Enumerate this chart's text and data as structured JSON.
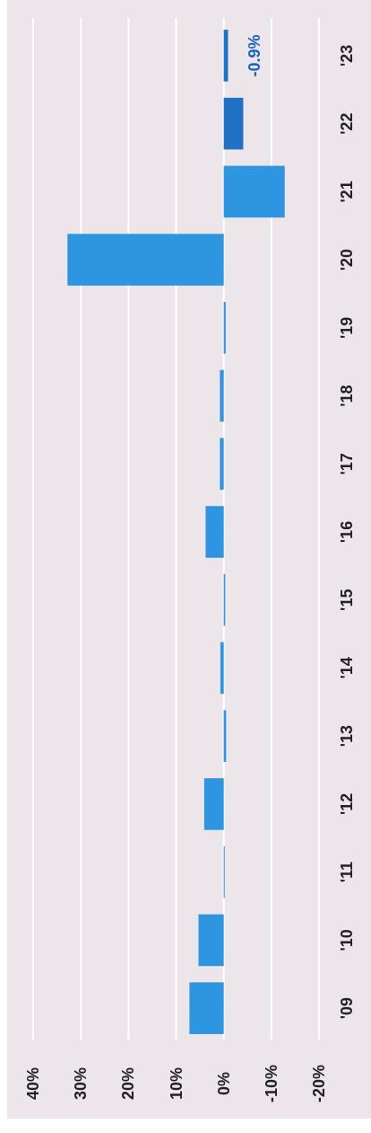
{
  "chart_data": {
    "type": "bar",
    "orientation": "horizontal",
    "categories": [
      "'23",
      "'22",
      "'21",
      "'20",
      "'19",
      "'18",
      "'17",
      "'16",
      "'15",
      "'14",
      "'13",
      "'12",
      "'11",
      "'10",
      "'09"
    ],
    "values": [
      -0.9,
      -4.1,
      -12.8,
      32.8,
      -0.4,
      0.8,
      0.8,
      3.8,
      -0.3,
      0.7,
      -0.5,
      4.1,
      -0.2,
      5.3,
      7.2
    ],
    "colors": [
      "#1f72c6",
      "#1f72c6",
      "#2e95e0",
      "#2e95e0",
      "#2e95e0",
      "#2e95e0",
      "#2e95e0",
      "#2e95e0",
      "#2e95e0",
      "#2e95e0",
      "#2e95e0",
      "#2e95e0",
      "#2e95e0",
      "#2e95e0",
      "#2e95e0"
    ],
    "value_labels": [
      "-0.9%",
      null,
      null,
      null,
      null,
      null,
      null,
      null,
      null,
      null,
      null,
      null,
      null,
      null,
      null
    ],
    "xlim": [
      40,
      -20
    ],
    "xticks": [
      {
        "value": 40,
        "label": "40%"
      },
      {
        "value": 30,
        "label": "30%"
      },
      {
        "value": 20,
        "label": "20%"
      },
      {
        "value": 10,
        "label": "10%"
      },
      {
        "value": 0,
        "label": "0%"
      },
      {
        "value": -10,
        "label": "-10%"
      },
      {
        "value": -20,
        "label": "-20%"
      }
    ],
    "grid": "x"
  }
}
